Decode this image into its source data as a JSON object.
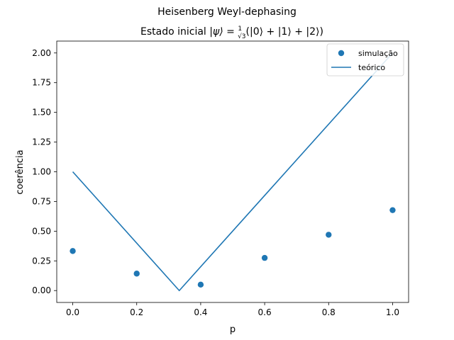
{
  "chart_data": {
    "type": "scatter",
    "suptitle": "Heisenberg Weyl-dephasing",
    "title": "Estado inicial |ψ⟩ = (1/√3)(|0⟩ + |1⟩ + |2⟩)",
    "title_prefix": "Estado inicial ",
    "title_math_start": "|ψ⟩ = ",
    "title_math_end": "(|0⟩ + |1⟩ + |2⟩)",
    "title_frac_num": "1",
    "title_frac_den": "√3",
    "xlabel": "p",
    "ylabel": "coerência",
    "xlim": [
      -0.05,
      1.05
    ],
    "ylim": [
      -0.1,
      2.1
    ],
    "xticks": [
      0.0,
      0.2,
      0.4,
      0.6,
      0.8,
      1.0
    ],
    "xtick_labels": [
      "0.0",
      "0.2",
      "0.4",
      "0.6",
      "0.8",
      "1.0"
    ],
    "yticks": [
      0.0,
      0.25,
      0.5,
      0.75,
      1.0,
      1.25,
      1.5,
      1.75,
      2.0
    ],
    "ytick_labels": [
      "0.00",
      "0.25",
      "0.50",
      "0.75",
      "1.00",
      "1.25",
      "1.50",
      "1.75",
      "2.00"
    ],
    "grid": false,
    "legend_position": "top-right",
    "series": [
      {
        "name": "simulação",
        "kind": "scatter",
        "color": "#1f77b4",
        "x": [
          0.0,
          0.2,
          0.4,
          0.6,
          0.8,
          1.0
        ],
        "y": [
          0.333,
          0.143,
          0.05,
          0.275,
          0.47,
          0.677
        ]
      },
      {
        "name": "teórico",
        "kind": "line",
        "color": "#1f77b4",
        "x": [
          0.0,
          0.333,
          1.0
        ],
        "y": [
          1.0,
          0.0,
          2.0
        ]
      }
    ]
  }
}
